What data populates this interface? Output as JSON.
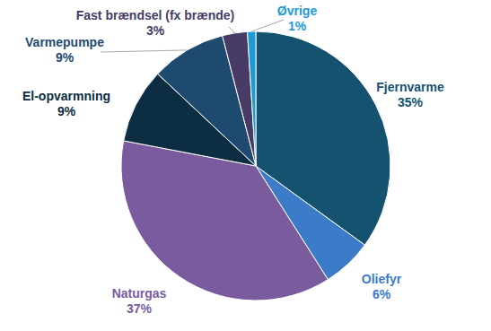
{
  "chart_data": {
    "type": "pie",
    "categories": [
      "Fjernvarme",
      "Oliefyr",
      "Naturgas",
      "El-opvarmning",
      "Varmepumpe",
      "Fast brændsel (fx brænde)",
      "Øvrige"
    ],
    "values": [
      35,
      6,
      37,
      9,
      9,
      3,
      1
    ],
    "value_labels": [
      "35%",
      "6%",
      "37%",
      "9%",
      "9%",
      "3%",
      "1%"
    ],
    "colors": [
      "#155270",
      "#3B7BC8",
      "#7A5C9E",
      "#0C2D42",
      "#1F4A70",
      "#483B66",
      "#1C9BD6"
    ],
    "data_labels": true
  }
}
